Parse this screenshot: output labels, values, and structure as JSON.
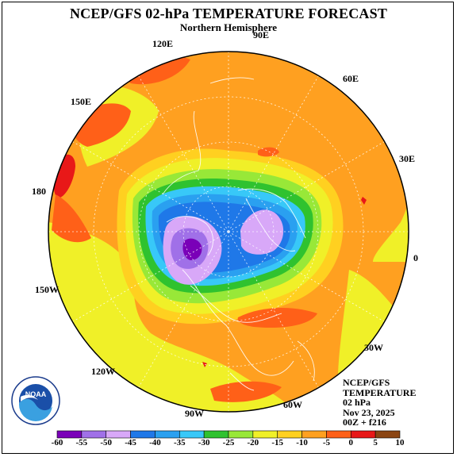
{
  "title": "NCEP/GFS 02-hPa TEMPERATURE FORECAST",
  "subtitle": "Northern Hemisphere",
  "longitude_labels": [
    "90E",
    "60E",
    "30E",
    "0",
    "30W",
    "60W",
    "90W",
    "120W",
    "150W",
    "180",
    "150E",
    "120E"
  ],
  "info": {
    "line1": "NCEP/GFS",
    "line2": "TEMPERATURE",
    "line3": "02 hPa",
    "line4": "Nov 23, 2025",
    "line5": "00Z + f216"
  },
  "logo_text": "NOAA",
  "logo_ring_text": "NATIONAL OCEANIC AND ATMOSPHERIC ADMINISTRATION · U.S. DEPARTMENT OF COMMERCE",
  "colorbar": {
    "tick_labels": [
      "-60",
      "-55",
      "-50",
      "-45",
      "-40",
      "-35",
      "-30",
      "-25",
      "-20",
      "-15",
      "-10",
      "-5",
      "0",
      "5",
      "10"
    ],
    "colors": [
      "#7a00b8",
      "#a070e8",
      "#d8a8f8",
      "#1f78e8",
      "#2aa0f0",
      "#38c8f8",
      "#2fc22f",
      "#98e838",
      "#f0f028",
      "#ffd020",
      "#ffa020",
      "#ff6018",
      "#e81818",
      "#8b4513",
      "#9a9a9a"
    ]
  },
  "map": {
    "palette": {
      "warm_orange": "#ffa020",
      "yellow_orange": "#ffd020",
      "yellow": "#f0f028",
      "dark_orange": "#ff6018",
      "red": "#e81818",
      "lime": "#98e838",
      "green": "#2fc22f",
      "cyan": "#38c8f8",
      "sky_blue": "#2aa0f0",
      "blue": "#1f78e8",
      "lavender": "#d8a8f8",
      "light_purple": "#a070e8",
      "purple": "#7a00b8"
    }
  }
}
